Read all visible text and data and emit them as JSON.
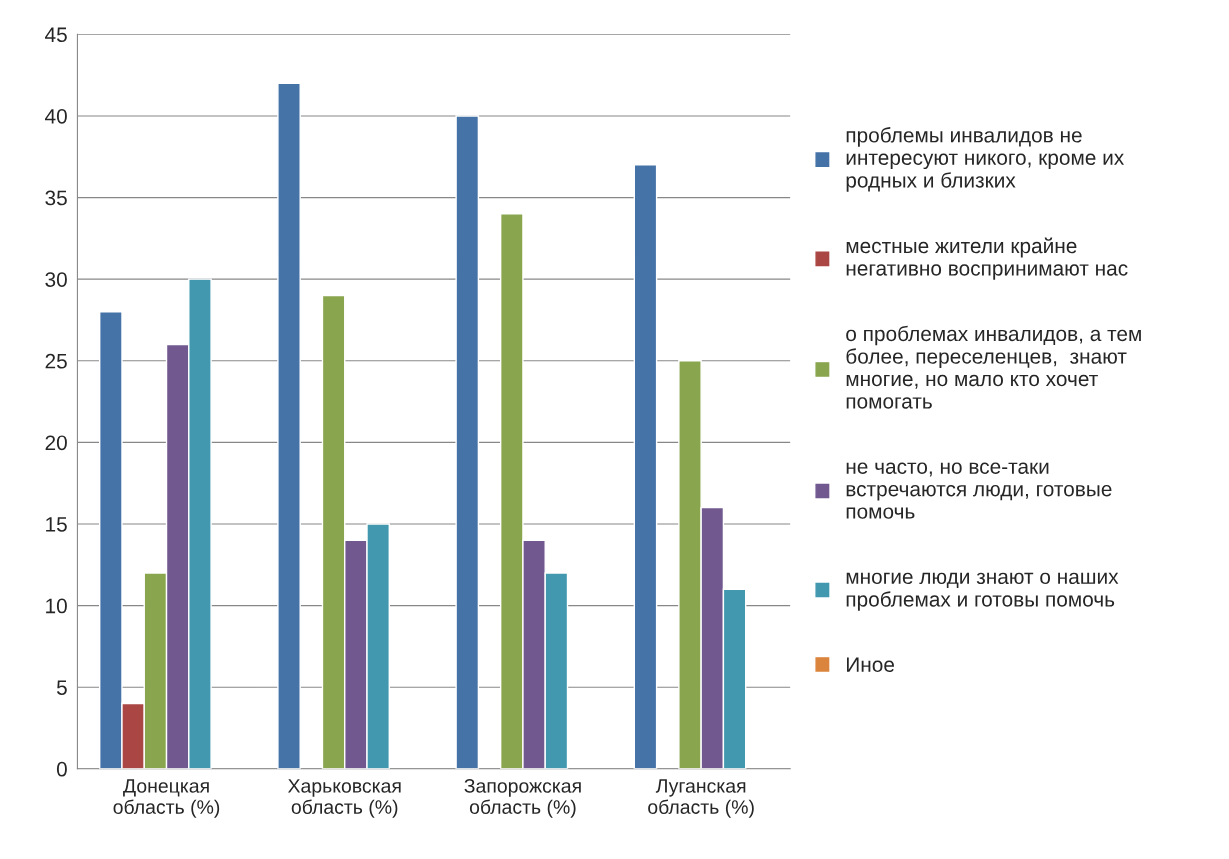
{
  "chart_data": {
    "type": "bar",
    "categories": [
      "Донецкая область (%)",
      "Харьковская область (%)",
      "Запорожская область (%)",
      "Луганская область (%)"
    ],
    "series": [
      {
        "name": "проблемы инвалидов не интересуют никого, кроме их родных и близких",
        "color": "#4572a7",
        "values": [
          28,
          42,
          40,
          37
        ]
      },
      {
        "name": "местные жители крайне негативно воспринимают нас",
        "color": "#aa4643",
        "values": [
          4,
          null,
          null,
          null
        ]
      },
      {
        "name": "о проблемах инвалидов, а тем более, переселенцев,  знают многие, но мало кто хочет помогать",
        "color": "#89a54e",
        "values": [
          12,
          29,
          34,
          25
        ]
      },
      {
        "name": "не часто, но все-таки встречаются люди, готовые помочь",
        "color": "#71588f",
        "values": [
          26,
          14,
          14,
          16
        ]
      },
      {
        "name": "многие люди знают о наших проблемах и готовы помочь",
        "color": "#4198af",
        "values": [
          30,
          15,
          12,
          11
        ]
      },
      {
        "name": "Иное",
        "color": "#db843d",
        "values": [
          null,
          null,
          null,
          null
        ]
      }
    ],
    "ylim": [
      0,
      45
    ],
    "yticks": [
      0,
      5,
      10,
      15,
      20,
      25,
      30,
      35,
      40,
      45
    ],
    "grid": "y",
    "legend": "right"
  }
}
